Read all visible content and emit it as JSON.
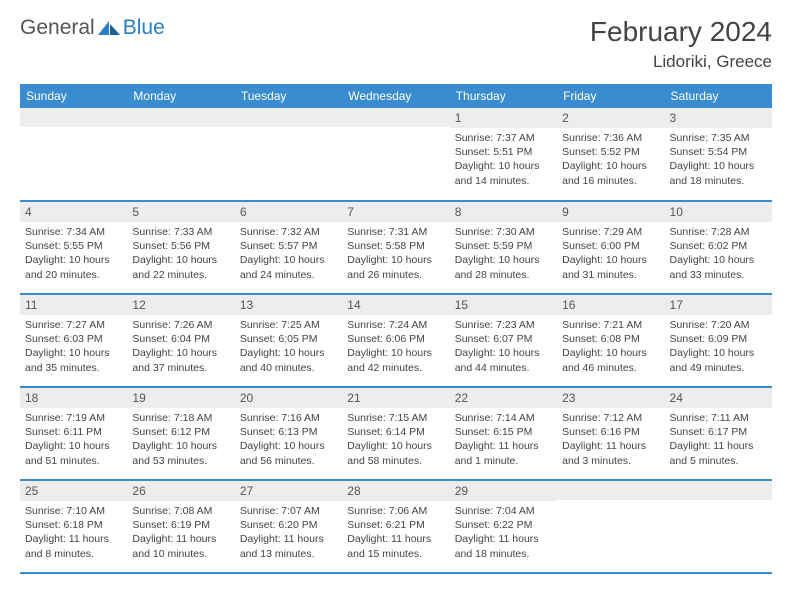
{
  "brand": {
    "part1": "General",
    "part2": "Blue"
  },
  "title": "February 2024",
  "location": "Lidoriki, Greece",
  "colors": {
    "header_bg": "#3a8cd0",
    "header_fg": "#ffffff",
    "daynum_bg": "#ededed",
    "border": "#3a8cd0",
    "brand_accent": "#2a7ec4"
  },
  "day_headers": [
    "Sunday",
    "Monday",
    "Tuesday",
    "Wednesday",
    "Thursday",
    "Friday",
    "Saturday"
  ],
  "weeks": [
    [
      {
        "n": "",
        "sunrise": "",
        "sunset": "",
        "daylight": ""
      },
      {
        "n": "",
        "sunrise": "",
        "sunset": "",
        "daylight": ""
      },
      {
        "n": "",
        "sunrise": "",
        "sunset": "",
        "daylight": ""
      },
      {
        "n": "",
        "sunrise": "",
        "sunset": "",
        "daylight": ""
      },
      {
        "n": "1",
        "sunrise": "Sunrise: 7:37 AM",
        "sunset": "Sunset: 5:51 PM",
        "daylight": "Daylight: 10 hours and 14 minutes."
      },
      {
        "n": "2",
        "sunrise": "Sunrise: 7:36 AM",
        "sunset": "Sunset: 5:52 PM",
        "daylight": "Daylight: 10 hours and 16 minutes."
      },
      {
        "n": "3",
        "sunrise": "Sunrise: 7:35 AM",
        "sunset": "Sunset: 5:54 PM",
        "daylight": "Daylight: 10 hours and 18 minutes."
      }
    ],
    [
      {
        "n": "4",
        "sunrise": "Sunrise: 7:34 AM",
        "sunset": "Sunset: 5:55 PM",
        "daylight": "Daylight: 10 hours and 20 minutes."
      },
      {
        "n": "5",
        "sunrise": "Sunrise: 7:33 AM",
        "sunset": "Sunset: 5:56 PM",
        "daylight": "Daylight: 10 hours and 22 minutes."
      },
      {
        "n": "6",
        "sunrise": "Sunrise: 7:32 AM",
        "sunset": "Sunset: 5:57 PM",
        "daylight": "Daylight: 10 hours and 24 minutes."
      },
      {
        "n": "7",
        "sunrise": "Sunrise: 7:31 AM",
        "sunset": "Sunset: 5:58 PM",
        "daylight": "Daylight: 10 hours and 26 minutes."
      },
      {
        "n": "8",
        "sunrise": "Sunrise: 7:30 AM",
        "sunset": "Sunset: 5:59 PM",
        "daylight": "Daylight: 10 hours and 28 minutes."
      },
      {
        "n": "9",
        "sunrise": "Sunrise: 7:29 AM",
        "sunset": "Sunset: 6:00 PM",
        "daylight": "Daylight: 10 hours and 31 minutes."
      },
      {
        "n": "10",
        "sunrise": "Sunrise: 7:28 AM",
        "sunset": "Sunset: 6:02 PM",
        "daylight": "Daylight: 10 hours and 33 minutes."
      }
    ],
    [
      {
        "n": "11",
        "sunrise": "Sunrise: 7:27 AM",
        "sunset": "Sunset: 6:03 PM",
        "daylight": "Daylight: 10 hours and 35 minutes."
      },
      {
        "n": "12",
        "sunrise": "Sunrise: 7:26 AM",
        "sunset": "Sunset: 6:04 PM",
        "daylight": "Daylight: 10 hours and 37 minutes."
      },
      {
        "n": "13",
        "sunrise": "Sunrise: 7:25 AM",
        "sunset": "Sunset: 6:05 PM",
        "daylight": "Daylight: 10 hours and 40 minutes."
      },
      {
        "n": "14",
        "sunrise": "Sunrise: 7:24 AM",
        "sunset": "Sunset: 6:06 PM",
        "daylight": "Daylight: 10 hours and 42 minutes."
      },
      {
        "n": "15",
        "sunrise": "Sunrise: 7:23 AM",
        "sunset": "Sunset: 6:07 PM",
        "daylight": "Daylight: 10 hours and 44 minutes."
      },
      {
        "n": "16",
        "sunrise": "Sunrise: 7:21 AM",
        "sunset": "Sunset: 6:08 PM",
        "daylight": "Daylight: 10 hours and 46 minutes."
      },
      {
        "n": "17",
        "sunrise": "Sunrise: 7:20 AM",
        "sunset": "Sunset: 6:09 PM",
        "daylight": "Daylight: 10 hours and 49 minutes."
      }
    ],
    [
      {
        "n": "18",
        "sunrise": "Sunrise: 7:19 AM",
        "sunset": "Sunset: 6:11 PM",
        "daylight": "Daylight: 10 hours and 51 minutes."
      },
      {
        "n": "19",
        "sunrise": "Sunrise: 7:18 AM",
        "sunset": "Sunset: 6:12 PM",
        "daylight": "Daylight: 10 hours and 53 minutes."
      },
      {
        "n": "20",
        "sunrise": "Sunrise: 7:16 AM",
        "sunset": "Sunset: 6:13 PM",
        "daylight": "Daylight: 10 hours and 56 minutes."
      },
      {
        "n": "21",
        "sunrise": "Sunrise: 7:15 AM",
        "sunset": "Sunset: 6:14 PM",
        "daylight": "Daylight: 10 hours and 58 minutes."
      },
      {
        "n": "22",
        "sunrise": "Sunrise: 7:14 AM",
        "sunset": "Sunset: 6:15 PM",
        "daylight": "Daylight: 11 hours and 1 minute."
      },
      {
        "n": "23",
        "sunrise": "Sunrise: 7:12 AM",
        "sunset": "Sunset: 6:16 PM",
        "daylight": "Daylight: 11 hours and 3 minutes."
      },
      {
        "n": "24",
        "sunrise": "Sunrise: 7:11 AM",
        "sunset": "Sunset: 6:17 PM",
        "daylight": "Daylight: 11 hours and 5 minutes."
      }
    ],
    [
      {
        "n": "25",
        "sunrise": "Sunrise: 7:10 AM",
        "sunset": "Sunset: 6:18 PM",
        "daylight": "Daylight: 11 hours and 8 minutes."
      },
      {
        "n": "26",
        "sunrise": "Sunrise: 7:08 AM",
        "sunset": "Sunset: 6:19 PM",
        "daylight": "Daylight: 11 hours and 10 minutes."
      },
      {
        "n": "27",
        "sunrise": "Sunrise: 7:07 AM",
        "sunset": "Sunset: 6:20 PM",
        "daylight": "Daylight: 11 hours and 13 minutes."
      },
      {
        "n": "28",
        "sunrise": "Sunrise: 7:06 AM",
        "sunset": "Sunset: 6:21 PM",
        "daylight": "Daylight: 11 hours and 15 minutes."
      },
      {
        "n": "29",
        "sunrise": "Sunrise: 7:04 AM",
        "sunset": "Sunset: 6:22 PM",
        "daylight": "Daylight: 11 hours and 18 minutes."
      },
      {
        "n": "",
        "sunrise": "",
        "sunset": "",
        "daylight": ""
      },
      {
        "n": "",
        "sunrise": "",
        "sunset": "",
        "daylight": ""
      }
    ]
  ]
}
